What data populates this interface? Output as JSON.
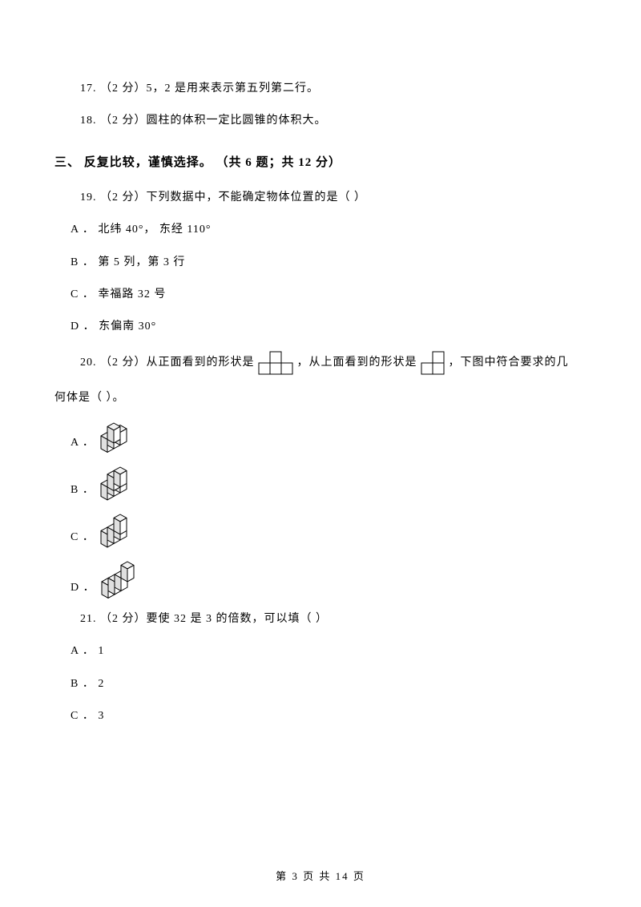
{
  "q17": {
    "num": "17.",
    "points": "（2 分）",
    "text": "5，2 是用来表示第五列第二行。"
  },
  "q18": {
    "num": "18.",
    "points": "（2 分）",
    "text": "圆柱的体积一定比圆锥的体积大。"
  },
  "section3": {
    "label": "三、 反复比较，谨慎选择。 （共 6 题；共 12 分）"
  },
  "q19": {
    "num": "19.",
    "points": "（2 分）",
    "stem": "下列数据中，不能确定物体位置的是（     ）",
    "A": "A ． 北纬 40°， 东经 110°",
    "B": "B ． 第 5 列，第 3 行",
    "C": "C ． 幸福路 32 号",
    "D": "D ． 东偏南 30°"
  },
  "q20": {
    "num": "20.",
    "points": "（2 分）",
    "pre": "从正面看到的形状是",
    "mid": "，从上面看到的形状是",
    "post": "，下图中符合要求的几",
    "line2": "何体是（     ）。",
    "front_view": {
      "cell": 14,
      "stroke": "#000000",
      "fill": "#ffffff",
      "cells": [
        [
          1,
          0
        ],
        [
          0,
          1
        ],
        [
          1,
          1
        ],
        [
          2,
          1
        ]
      ]
    },
    "top_view": {
      "cell": 14,
      "stroke": "#000000",
      "fill": "#ffffff",
      "cells": [
        [
          1,
          0
        ],
        [
          0,
          1
        ],
        [
          1,
          1
        ]
      ]
    },
    "options": {
      "A": {
        "label": "A ．",
        "cubes": [
          [
            0,
            0,
            1
          ],
          [
            0,
            1,
            0
          ],
          [
            1,
            1,
            0
          ],
          [
            2,
            1,
            0
          ]
        ]
      },
      "B": {
        "label": "B ．",
        "cubes": [
          [
            0,
            0,
            1
          ],
          [
            1,
            0,
            1
          ],
          [
            0,
            1,
            0
          ],
          [
            1,
            1,
            0
          ],
          [
            2,
            1,
            0
          ]
        ]
      },
      "C": {
        "label": "C ．",
        "cubes": [
          [
            1,
            0,
            1
          ],
          [
            0,
            1,
            0
          ],
          [
            1,
            1,
            0
          ],
          [
            2,
            1,
            0
          ]
        ]
      },
      "D": {
        "label": "D ．",
        "cubes": [
          [
            2,
            0,
            1
          ],
          [
            0,
            1,
            0
          ],
          [
            1,
            1,
            0
          ],
          [
            2,
            1,
            0
          ]
        ]
      }
    },
    "iso": {
      "edge": 16,
      "fill": "#ffffff",
      "stroke": "#000000",
      "top_shade": "#f2f2f2",
      "side_shade": "#e0e0e0"
    }
  },
  "q21": {
    "num": "21.",
    "points": "（2 分）",
    "stem": "要使 32   是 3 的倍数，可以填（     ）",
    "A": "A ． 1",
    "B": "B ． 2",
    "C": "C ． 3"
  },
  "footer": {
    "text": "第 3 页 共 14 页"
  }
}
